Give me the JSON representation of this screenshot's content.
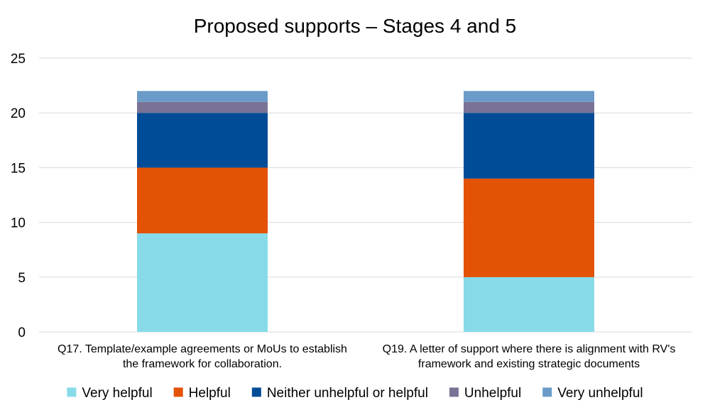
{
  "chart_data": {
    "type": "bar",
    "stacked": true,
    "title": "Proposed supports – Stages 4 and 5",
    "xlabel": "",
    "ylabel": "",
    "ylim": [
      0,
      25
    ],
    "yticks": [
      0,
      5,
      10,
      15,
      20,
      25
    ],
    "grid": true,
    "legend_position": "bottom",
    "categories": [
      [
        "Q17. Template/example agreements or MoUs to establish",
        "the framework for collaboration."
      ],
      [
        "Q19. A letter of support where there is alignment with RV's",
        "framework and existing strategic documents"
      ]
    ],
    "series": [
      {
        "name": "Very helpful",
        "color": "#87dbe9",
        "values": [
          9,
          5
        ]
      },
      {
        "name": "Helpful",
        "color": "#e35205",
        "values": [
          6,
          9
        ]
      },
      {
        "name": "Neither unhelpful or helpful",
        "color": "#004c97",
        "values": [
          5,
          6
        ]
      },
      {
        "name": "Unhelpful",
        "color": "#7a7396",
        "values": [
          1,
          1
        ]
      },
      {
        "name": "Very unhelpful",
        "color": "#6b9bc8",
        "values": [
          1,
          1
        ]
      }
    ]
  }
}
